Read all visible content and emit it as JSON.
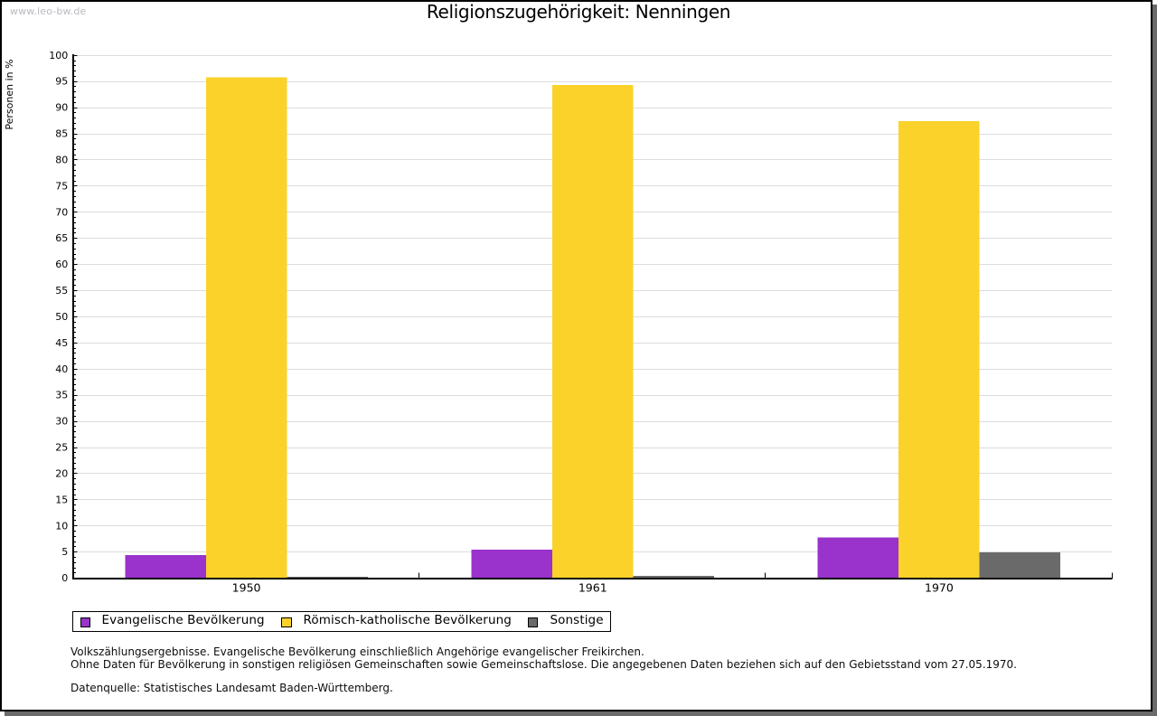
{
  "page": {
    "watermark": "www.leo-bw.de",
    "background_color": "#ffffff",
    "card_border_color": "#000000",
    "shadow_color": "#6b6b6b"
  },
  "chart_data": {
    "type": "bar",
    "title": "Religionszugehörigkeit: Nenningen",
    "ylabel": "Personen in %",
    "xlabel": "",
    "categories": [
      "1950",
      "1961",
      "1970"
    ],
    "series": [
      {
        "name": "Evangelische Bevölkerung",
        "color": "#9933cc",
        "values": [
          4.3,
          5.4,
          7.7
        ]
      },
      {
        "name": "Römisch-katholische Bevölkerung",
        "color": "#fbd22a",
        "values": [
          95.7,
          94.3,
          87.3
        ]
      },
      {
        "name": "Sonstige",
        "color": "#6a6a6a",
        "values": [
          0.2,
          0.4,
          4.9
        ]
      }
    ],
    "ylim": [
      0,
      100
    ],
    "ytick_step": 5,
    "yminor_step": 1,
    "grid": true,
    "gridline_color": "#dcdcdc",
    "axis_color": "#000000",
    "legend_position": "bottom"
  },
  "footnotes": {
    "line1": "Volkszählungsergebnisse. Evangelische Bevölkerung einschließlich Angehörige evangelischer Freikirchen.",
    "line2": "Ohne Daten für Bevölkerung in sonstigen religiösen Gemeinschaften sowie Gemeinschaftslose. Die angegebenen Daten beziehen sich auf den Gebietsstand vom 27.05.1970.",
    "source": "Datenquelle: Statistisches Landesamt Baden-Württemberg."
  }
}
